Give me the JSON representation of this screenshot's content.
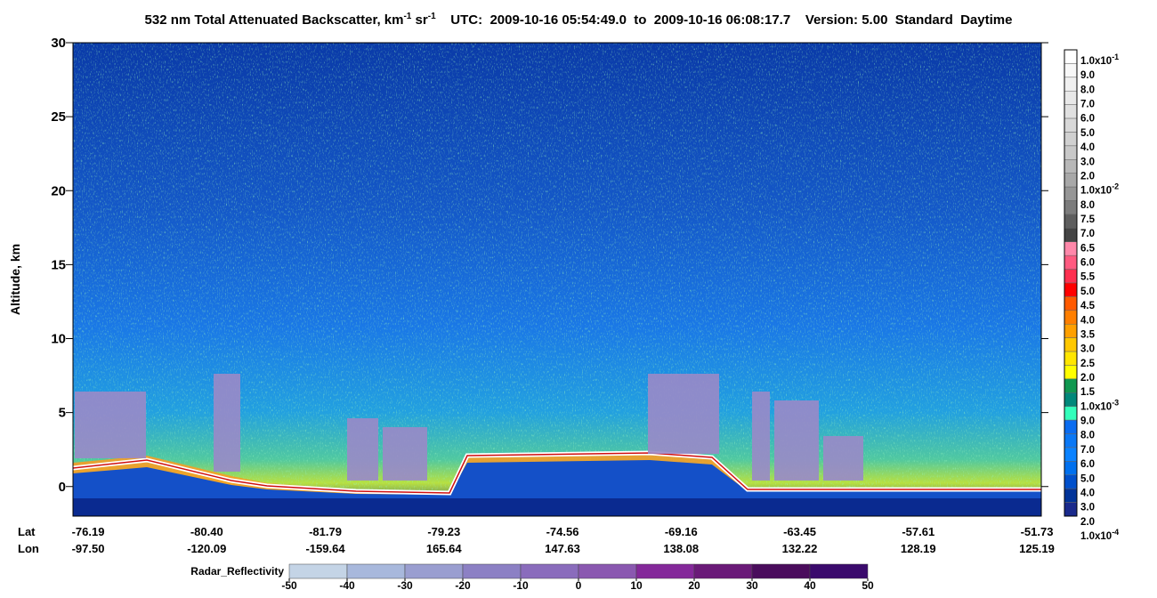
{
  "chart_data": {
    "type": "curtain",
    "title": [
      {
        "text": "532 nm Total Attenuated Backscatter, km"
      },
      {
        "text": "-1",
        "sup": true
      },
      {
        "text": " sr"
      },
      {
        "text": "-1",
        "sup": true
      },
      {
        "text": "    UTC:  2009-10-16 05:54:49.0  to  2009-10-16 06:08:17.7    Version: 5.00  Standard  Daytime"
      }
    ],
    "y_label": "Altitude, km",
    "ylim": [
      -2,
      30
    ],
    "yticks": [
      0,
      5,
      10,
      15,
      20,
      25,
      30
    ],
    "lat_label": "Lat",
    "lon_label": "Lon",
    "lat": [
      "-76.19",
      "-80.40",
      "-81.79",
      "-79.23",
      "-74.56",
      "-69.16",
      "-63.45",
      "-57.61",
      "-51.73"
    ],
    "lon": [
      "-97.50",
      "-120.09",
      "-159.64",
      "165.64",
      "147.63",
      "138.08",
      "132.22",
      "128.19",
      "125.19"
    ],
    "colorbar": {
      "labels": [
        {
          "text": "1.0x10",
          "sup": "-1"
        },
        "9.0",
        "8.0",
        "7.0",
        "6.0",
        "5.0",
        "4.0",
        "3.0",
        "2.0",
        {
          "text": "1.0x10",
          "sup": "-2"
        },
        "8.0",
        "7.5",
        "7.0",
        "6.5",
        "6.0",
        "5.5",
        "5.0",
        "4.5",
        "4.0",
        "3.5",
        "3.0",
        "2.5",
        "2.0",
        "1.5",
        {
          "text": "1.0x10",
          "sup": "-3"
        },
        "9.0",
        "8.0",
        "7.0",
        "6.0",
        "5.0",
        "4.0",
        "3.0",
        "2.0",
        {
          "text": "1.0x10",
          "sup": "-4"
        }
      ],
      "colors": [
        "#ffffff",
        "#f8f8f8",
        "#f0f0f0",
        "#e8e8e8",
        "#e0e0e0",
        "#d8d8d8",
        "#d0d0d0",
        "#c8c8c8",
        "#b8b8b8",
        "#a8a8a8",
        "#969696",
        "#7c7c7c",
        "#5e5e5e",
        "#444444",
        "#ff88aa",
        "#ff5a80",
        "#ff3050",
        "#ff0000",
        "#ff5a00",
        "#ff7f00",
        "#ffa000",
        "#ffc800",
        "#ffe600",
        "#ffff00",
        "#109850",
        "#00887a",
        "#33ffbb",
        "#0a6cf0",
        "#0a78f5",
        "#0a82ff",
        "#0070ee",
        "#0050cc",
        "#003399",
        "#1a2a8c"
      ]
    },
    "radar": {
      "label": "Radar_Reflectivity",
      "ticks": [
        -50,
        -40,
        -30,
        -20,
        -10,
        0,
        10,
        20,
        30,
        40,
        50
      ],
      "colors": [
        "#c4d4e6",
        "#a8b8dc",
        "#9a9ed0",
        "#8c80c4",
        "#8a6cbc",
        "#8a58b0",
        "#84289a",
        "#6a1a78",
        "#4a0c5c",
        "#3a0a6c"
      ]
    }
  }
}
